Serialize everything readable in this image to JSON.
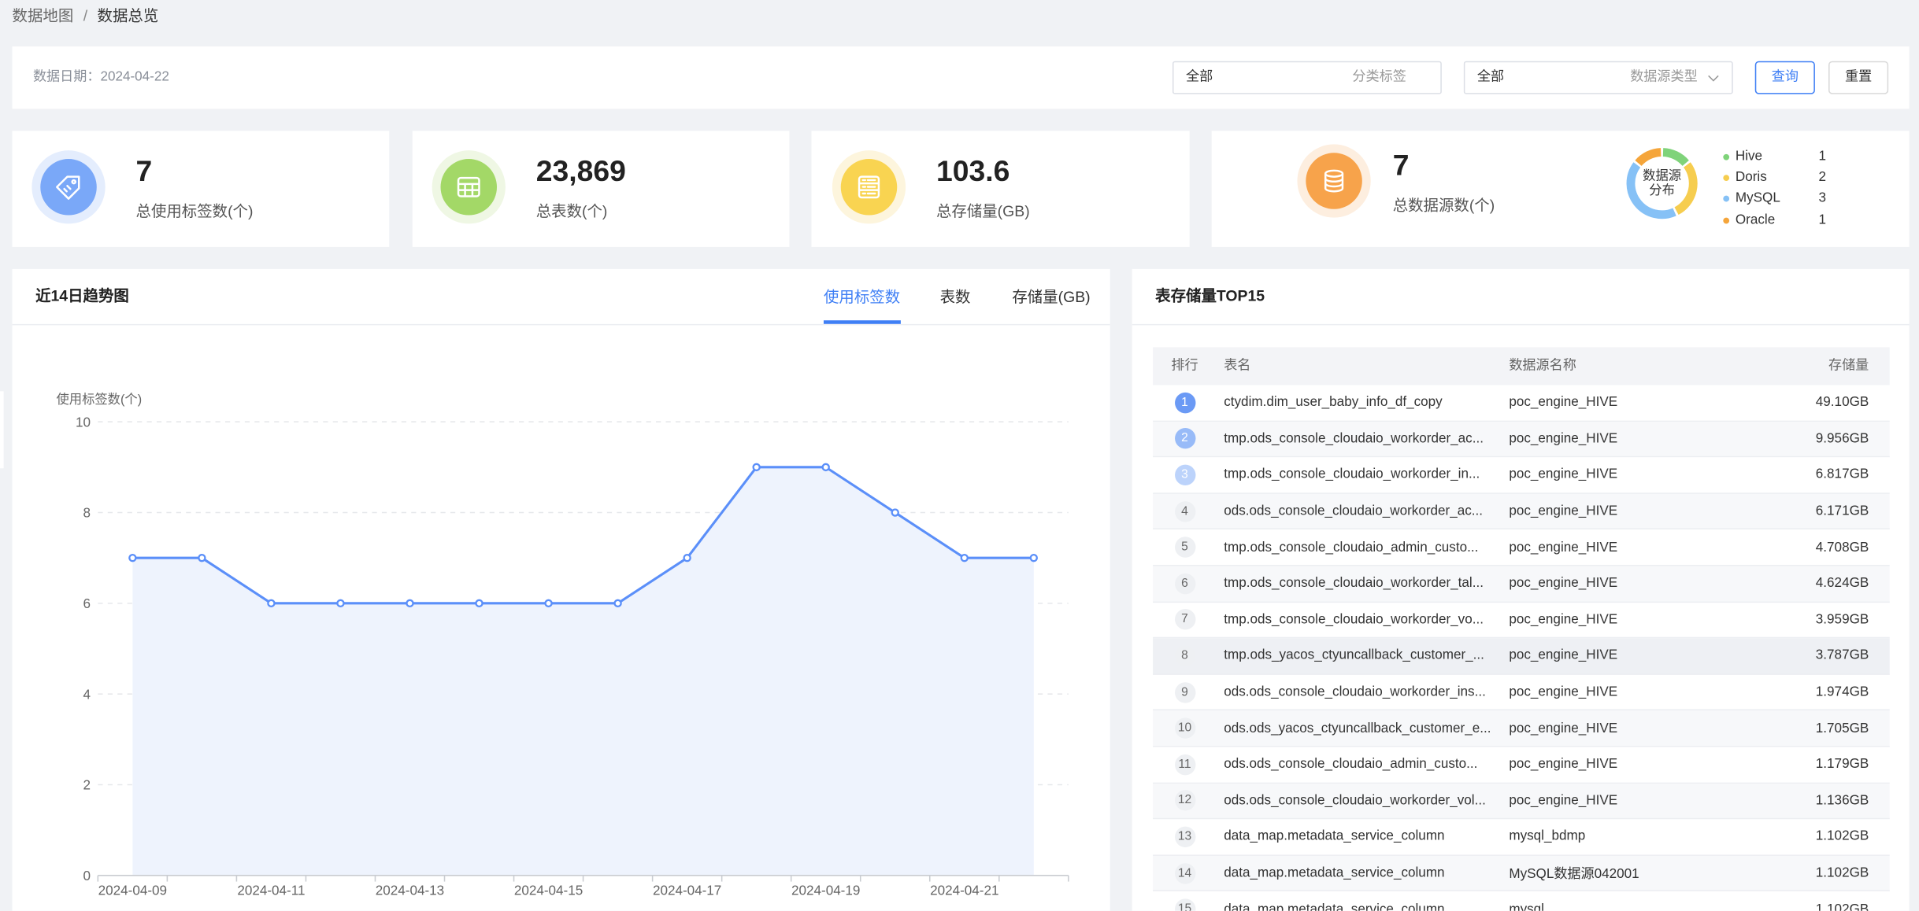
{
  "breadcrumb": {
    "parent": "数据地图",
    "separator": "/",
    "current": "数据总览"
  },
  "filter": {
    "date_label": "数据日期：",
    "date_value": "2024-04-22",
    "category_select": {
      "value": "全部",
      "label": "分类标签"
    },
    "source_select": {
      "value": "全部",
      "label": "数据源类型",
      "icon": "chevron-down-icon"
    },
    "query_label": "查询",
    "reset_label": "重置",
    "accent": "#3f7ff5"
  },
  "stats": [
    {
      "value": "7",
      "label": "总使用标签数(个)",
      "icon": "tag-icon",
      "color": "#7aa8f8",
      "halo": "#e4edfd"
    },
    {
      "value": "23,869",
      "label": "总表数(个)",
      "icon": "table-icon",
      "color": "#a3d867",
      "halo": "#eff7e4"
    },
    {
      "value": "103.6",
      "label": "总存储量(GB)",
      "icon": "storage-icon",
      "color": "#f9d451",
      "halo": "#fdf5dd"
    }
  ],
  "datasource": {
    "value": "7",
    "label": "总数据源数(个)",
    "icon": "database-icon",
    "color": "#f7a34b",
    "halo": "#fdeedf",
    "donut_title": [
      "数据源",
      "分布"
    ],
    "legend": [
      {
        "name": "Hive",
        "count": 1,
        "color": "#7fd37a"
      },
      {
        "name": "Doris",
        "count": 2,
        "color": "#f6cd4f"
      },
      {
        "name": "MySQL",
        "count": 3,
        "color": "#86c1f6"
      },
      {
        "name": "Oracle",
        "count": 1,
        "color": "#f5a53a"
      }
    ]
  },
  "trend": {
    "title": "近14日趋势图",
    "tabs": [
      {
        "label": "使用标签数",
        "active": true
      },
      {
        "label": "表数",
        "active": false
      },
      {
        "label": "存储量(GB)",
        "active": false
      }
    ]
  },
  "chart_data": {
    "type": "area",
    "categories": [
      "2024-04-09",
      "2024-04-10",
      "2024-04-11",
      "2024-04-12",
      "2024-04-13",
      "2024-04-14",
      "2024-04-15",
      "2024-04-16",
      "2024-04-17",
      "2024-04-18",
      "2024-04-19",
      "2024-04-20",
      "2024-04-21",
      "2024-04-22"
    ],
    "values": [
      7,
      7,
      6,
      6,
      6,
      6,
      6,
      6,
      7,
      9,
      9,
      8,
      7,
      7
    ],
    "xtick_labels": [
      "2024-04-09",
      "2024-04-11",
      "2024-04-13",
      "2024-04-15",
      "2024-04-17",
      "2024-04-19",
      "2024-04-21"
    ],
    "ylabel": "使用标签数(个)",
    "ylim": [
      0,
      10
    ],
    "yticks": [
      0,
      2,
      4,
      6,
      8,
      10
    ],
    "grid": true,
    "line_color": "#5b8ff9",
    "fill_color": "#eef3fd"
  },
  "top15": {
    "title": "表存储量TOP15",
    "columns": [
      "排行",
      "表名",
      "数据源名称",
      "存储量"
    ],
    "rows": [
      {
        "rank": 1,
        "table": "ctydim.dim_user_baby_info_df_copy",
        "source": "poc_engine_HIVE",
        "size": "49.10GB"
      },
      {
        "rank": 2,
        "table": "tmp.ods_console_cloudaio_workorder_ac...",
        "source": "poc_engine_HIVE",
        "size": "9.956GB"
      },
      {
        "rank": 3,
        "table": "tmp.ods_console_cloudaio_workorder_in...",
        "source": "poc_engine_HIVE",
        "size": "6.817GB"
      },
      {
        "rank": 4,
        "table": "ods.ods_console_cloudaio_workorder_ac...",
        "source": "poc_engine_HIVE",
        "size": "6.171GB"
      },
      {
        "rank": 5,
        "table": "tmp.ods_console_cloudaio_admin_custo...",
        "source": "poc_engine_HIVE",
        "size": "4.708GB"
      },
      {
        "rank": 6,
        "table": "tmp.ods_console_cloudaio_workorder_tal...",
        "source": "poc_engine_HIVE",
        "size": "4.624GB"
      },
      {
        "rank": 7,
        "table": "tmp.ods_console_cloudaio_workorder_vo...",
        "source": "poc_engine_HIVE",
        "size": "3.959GB"
      },
      {
        "rank": 8,
        "table": "tmp.ods_yacos_ctyuncallback_customer_...",
        "source": "poc_engine_HIVE",
        "size": "3.787GB"
      },
      {
        "rank": 9,
        "table": "ods.ods_console_cloudaio_workorder_ins...",
        "source": "poc_engine_HIVE",
        "size": "1.974GB"
      },
      {
        "rank": 10,
        "table": "ods.ods_yacos_ctyuncallback_customer_e...",
        "source": "poc_engine_HIVE",
        "size": "1.705GB"
      },
      {
        "rank": 11,
        "table": "ods.ods_console_cloudaio_admin_custo...",
        "source": "poc_engine_HIVE",
        "size": "1.179GB"
      },
      {
        "rank": 12,
        "table": "ods.ods_console_cloudaio_workorder_vol...",
        "source": "poc_engine_HIVE",
        "size": "1.136GB"
      },
      {
        "rank": 13,
        "table": "data_map.metadata_service_column",
        "source": "mysql_bdmp",
        "size": "1.102GB"
      },
      {
        "rank": 14,
        "table": "data_map.metadata_service_column",
        "source": "MySQL数据源042001",
        "size": "1.102GB"
      },
      {
        "rank": 15,
        "table": "data_map.metadata_service_column",
        "source": "mysql",
        "size": "1.102GB"
      }
    ]
  }
}
